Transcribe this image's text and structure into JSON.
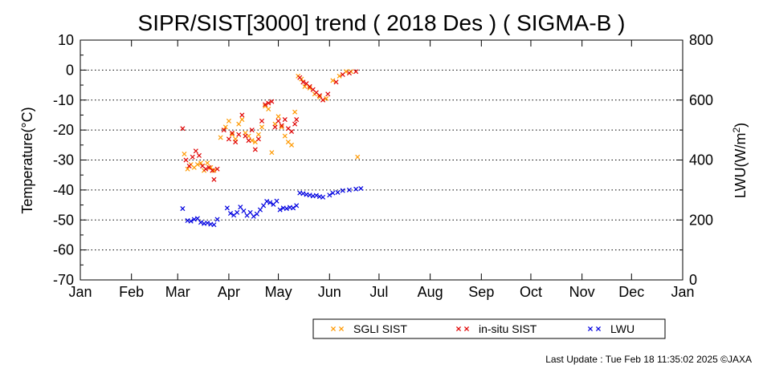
{
  "chart_data": {
    "type": "scatter",
    "title": "SIPR/SIST[3000] trend ( 2018 Des ) ( SIGMA-B )",
    "ylabel": "Temperature(°C)",
    "y2label_main": "LWU(W/m",
    "y2label_sup": "2",
    "y2label_end": ")",
    "xlim": [
      "2018-01-01",
      "2019-01-01"
    ],
    "ylim": [
      -70,
      10
    ],
    "y2lim": [
      0,
      800
    ],
    "x_ticks": [
      {
        "date": "2018-01-01",
        "label": "Jan"
      },
      {
        "date": "2018-02-01",
        "label": "Feb"
      },
      {
        "date": "2018-03-01",
        "label": "Mar"
      },
      {
        "date": "2018-04-01",
        "label": "Apr"
      },
      {
        "date": "2018-05-01",
        "label": "May"
      },
      {
        "date": "2018-06-01",
        "label": "Jun"
      },
      {
        "date": "2018-07-01",
        "label": "Jul"
      },
      {
        "date": "2018-08-01",
        "label": "Aug"
      },
      {
        "date": "2018-09-01",
        "label": "Sep"
      },
      {
        "date": "2018-10-01",
        "label": "Oct"
      },
      {
        "date": "2018-11-01",
        "label": "Nov"
      },
      {
        "date": "2018-12-01",
        "label": "Dec"
      },
      {
        "date": "2019-01-01",
        "label": "Jan"
      }
    ],
    "y_ticks": [
      10,
      0,
      -10,
      -20,
      -30,
      -40,
      -50,
      -60,
      -70
    ],
    "y2_ticks": [
      800,
      600,
      400,
      200,
      0
    ],
    "grid": "horizontal dotted",
    "legend_position": "bottom-right",
    "series": [
      {
        "name": "SGLI SIST",
        "axis": "left",
        "color": "#ff9900",
        "points": [
          [
            "2018-03-05",
            -28.0
          ],
          [
            "2018-03-07",
            -33.0
          ],
          [
            "2018-03-09",
            -31.5
          ],
          [
            "2018-03-11",
            -32.5
          ],
          [
            "2018-03-13",
            -31.5
          ],
          [
            "2018-03-15",
            -31.0
          ],
          [
            "2018-03-17",
            -33.5
          ],
          [
            "2018-03-19",
            -31.0
          ],
          [
            "2018-03-21",
            -32.5
          ],
          [
            "2018-03-23",
            -33.5
          ],
          [
            "2018-03-27",
            -22.5
          ],
          [
            "2018-03-30",
            -19.0
          ],
          [
            "2018-04-01",
            -17.0
          ],
          [
            "2018-04-03",
            -21.5
          ],
          [
            "2018-04-05",
            -23.0
          ],
          [
            "2018-04-07",
            -18.0
          ],
          [
            "2018-04-09",
            -16.5
          ],
          [
            "2018-04-11",
            -21.0
          ],
          [
            "2018-04-13",
            -22.0
          ],
          [
            "2018-04-15",
            -23.5
          ],
          [
            "2018-04-17",
            -24.0
          ],
          [
            "2018-04-19",
            -21.5
          ],
          [
            "2018-04-21",
            -19.0
          ],
          [
            "2018-04-23",
            -12.0
          ],
          [
            "2018-04-25",
            -13.0
          ],
          [
            "2018-04-27",
            -27.5
          ],
          [
            "2018-04-29",
            -18.0
          ],
          [
            "2018-05-01",
            -15.5
          ],
          [
            "2018-05-03",
            -19.0
          ],
          [
            "2018-05-05",
            -22.0
          ],
          [
            "2018-05-07",
            -24.0
          ],
          [
            "2018-05-09",
            -25.0
          ],
          [
            "2018-05-11",
            -14.0
          ],
          [
            "2018-05-13",
            -2.0
          ],
          [
            "2018-05-15",
            -3.0
          ],
          [
            "2018-05-17",
            -5.5
          ],
          [
            "2018-05-20",
            -6.0
          ],
          [
            "2018-05-23",
            -8.0
          ],
          [
            "2018-05-26",
            -9.0
          ],
          [
            "2018-05-30",
            -9.5
          ],
          [
            "2018-06-03",
            -3.5
          ],
          [
            "2018-06-07",
            -2.0
          ],
          [
            "2018-06-11",
            -0.5
          ],
          [
            "2018-06-14",
            -0.5
          ],
          [
            "2018-06-18",
            -29.0
          ]
        ]
      },
      {
        "name": "in-situ SIST",
        "axis": "left",
        "color": "#e00000",
        "points": [
          [
            "2018-03-04",
            -19.5
          ],
          [
            "2018-03-06",
            -30.0
          ],
          [
            "2018-03-08",
            -32.0
          ],
          [
            "2018-03-10",
            -29.0
          ],
          [
            "2018-03-12",
            -27.0
          ],
          [
            "2018-03-14",
            -28.5
          ],
          [
            "2018-03-16",
            -32.0
          ],
          [
            "2018-03-18",
            -33.0
          ],
          [
            "2018-03-20",
            -32.5
          ],
          [
            "2018-03-22",
            -33.5
          ],
          [
            "2018-03-23",
            -36.5
          ],
          [
            "2018-03-25",
            -33.0
          ],
          [
            "2018-03-29",
            -20.0
          ],
          [
            "2018-04-01",
            -23.0
          ],
          [
            "2018-04-03",
            -21.0
          ],
          [
            "2018-04-05",
            -24.0
          ],
          [
            "2018-04-07",
            -21.5
          ],
          [
            "2018-04-09",
            -15.0
          ],
          [
            "2018-04-11",
            -22.0
          ],
          [
            "2018-04-13",
            -23.5
          ],
          [
            "2018-04-15",
            -20.0
          ],
          [
            "2018-04-17",
            -26.5
          ],
          [
            "2018-04-19",
            -23.0
          ],
          [
            "2018-04-21",
            -17.0
          ],
          [
            "2018-04-23",
            -11.5
          ],
          [
            "2018-04-25",
            -11.0
          ],
          [
            "2018-04-27",
            -10.5
          ],
          [
            "2018-04-29",
            -19.0
          ],
          [
            "2018-05-01",
            -17.0
          ],
          [
            "2018-05-03",
            -18.5
          ],
          [
            "2018-05-05",
            -16.5
          ],
          [
            "2018-05-07",
            -19.5
          ],
          [
            "2018-05-09",
            -20.5
          ],
          [
            "2018-05-11",
            -18.0
          ],
          [
            "2018-05-12",
            -16.5
          ],
          [
            "2018-05-14",
            -2.5
          ],
          [
            "2018-05-16",
            -4.0
          ],
          [
            "2018-05-18",
            -4.5
          ],
          [
            "2018-05-20",
            -5.5
          ],
          [
            "2018-05-22",
            -6.5
          ],
          [
            "2018-05-24",
            -7.5
          ],
          [
            "2018-05-26",
            -8.5
          ],
          [
            "2018-05-28",
            -10.0
          ],
          [
            "2018-05-31",
            -8.0
          ],
          [
            "2018-06-05",
            -4.0
          ],
          [
            "2018-06-09",
            -1.5
          ],
          [
            "2018-06-13",
            -1.0
          ],
          [
            "2018-06-17",
            -0.5
          ]
        ]
      },
      {
        "name": "LWU",
        "axis": "right",
        "color": "#0000e0",
        "points": [
          [
            "2018-03-04",
            238
          ],
          [
            "2018-03-07",
            198
          ],
          [
            "2018-03-09",
            196
          ],
          [
            "2018-03-11",
            202
          ],
          [
            "2018-03-13",
            205
          ],
          [
            "2018-03-15",
            192
          ],
          [
            "2018-03-17",
            188
          ],
          [
            "2018-03-19",
            190
          ],
          [
            "2018-03-21",
            186
          ],
          [
            "2018-03-23",
            184
          ],
          [
            "2018-03-25",
            202
          ],
          [
            "2018-03-31",
            240
          ],
          [
            "2018-04-02",
            222
          ],
          [
            "2018-04-04",
            216
          ],
          [
            "2018-04-06",
            225
          ],
          [
            "2018-04-08",
            243
          ],
          [
            "2018-04-10",
            230
          ],
          [
            "2018-04-12",
            215
          ],
          [
            "2018-04-14",
            225
          ],
          [
            "2018-04-16",
            212
          ],
          [
            "2018-04-18",
            220
          ],
          [
            "2018-04-20",
            234
          ],
          [
            "2018-04-22",
            248
          ],
          [
            "2018-04-24",
            262
          ],
          [
            "2018-04-26",
            258
          ],
          [
            "2018-04-28",
            252
          ],
          [
            "2018-04-30",
            263
          ],
          [
            "2018-05-02",
            234
          ],
          [
            "2018-05-04",
            240
          ],
          [
            "2018-05-06",
            238
          ],
          [
            "2018-05-08",
            242
          ],
          [
            "2018-05-10",
            240
          ],
          [
            "2018-05-12",
            248
          ],
          [
            "2018-05-14",
            290
          ],
          [
            "2018-05-16",
            288
          ],
          [
            "2018-05-18",
            285
          ],
          [
            "2018-05-20",
            283
          ],
          [
            "2018-05-22",
            280
          ],
          [
            "2018-05-24",
            282
          ],
          [
            "2018-05-26",
            278
          ],
          [
            "2018-05-28",
            276
          ],
          [
            "2018-06-01",
            283
          ],
          [
            "2018-06-03",
            290
          ],
          [
            "2018-06-06",
            292
          ],
          [
            "2018-06-09",
            298
          ],
          [
            "2018-06-13",
            300
          ],
          [
            "2018-06-17",
            303
          ],
          [
            "2018-06-20",
            305
          ]
        ]
      }
    ]
  },
  "footer": {
    "last_update": "Last Update : Tue Feb 18 11:35:02 2025  ©JAXA"
  }
}
